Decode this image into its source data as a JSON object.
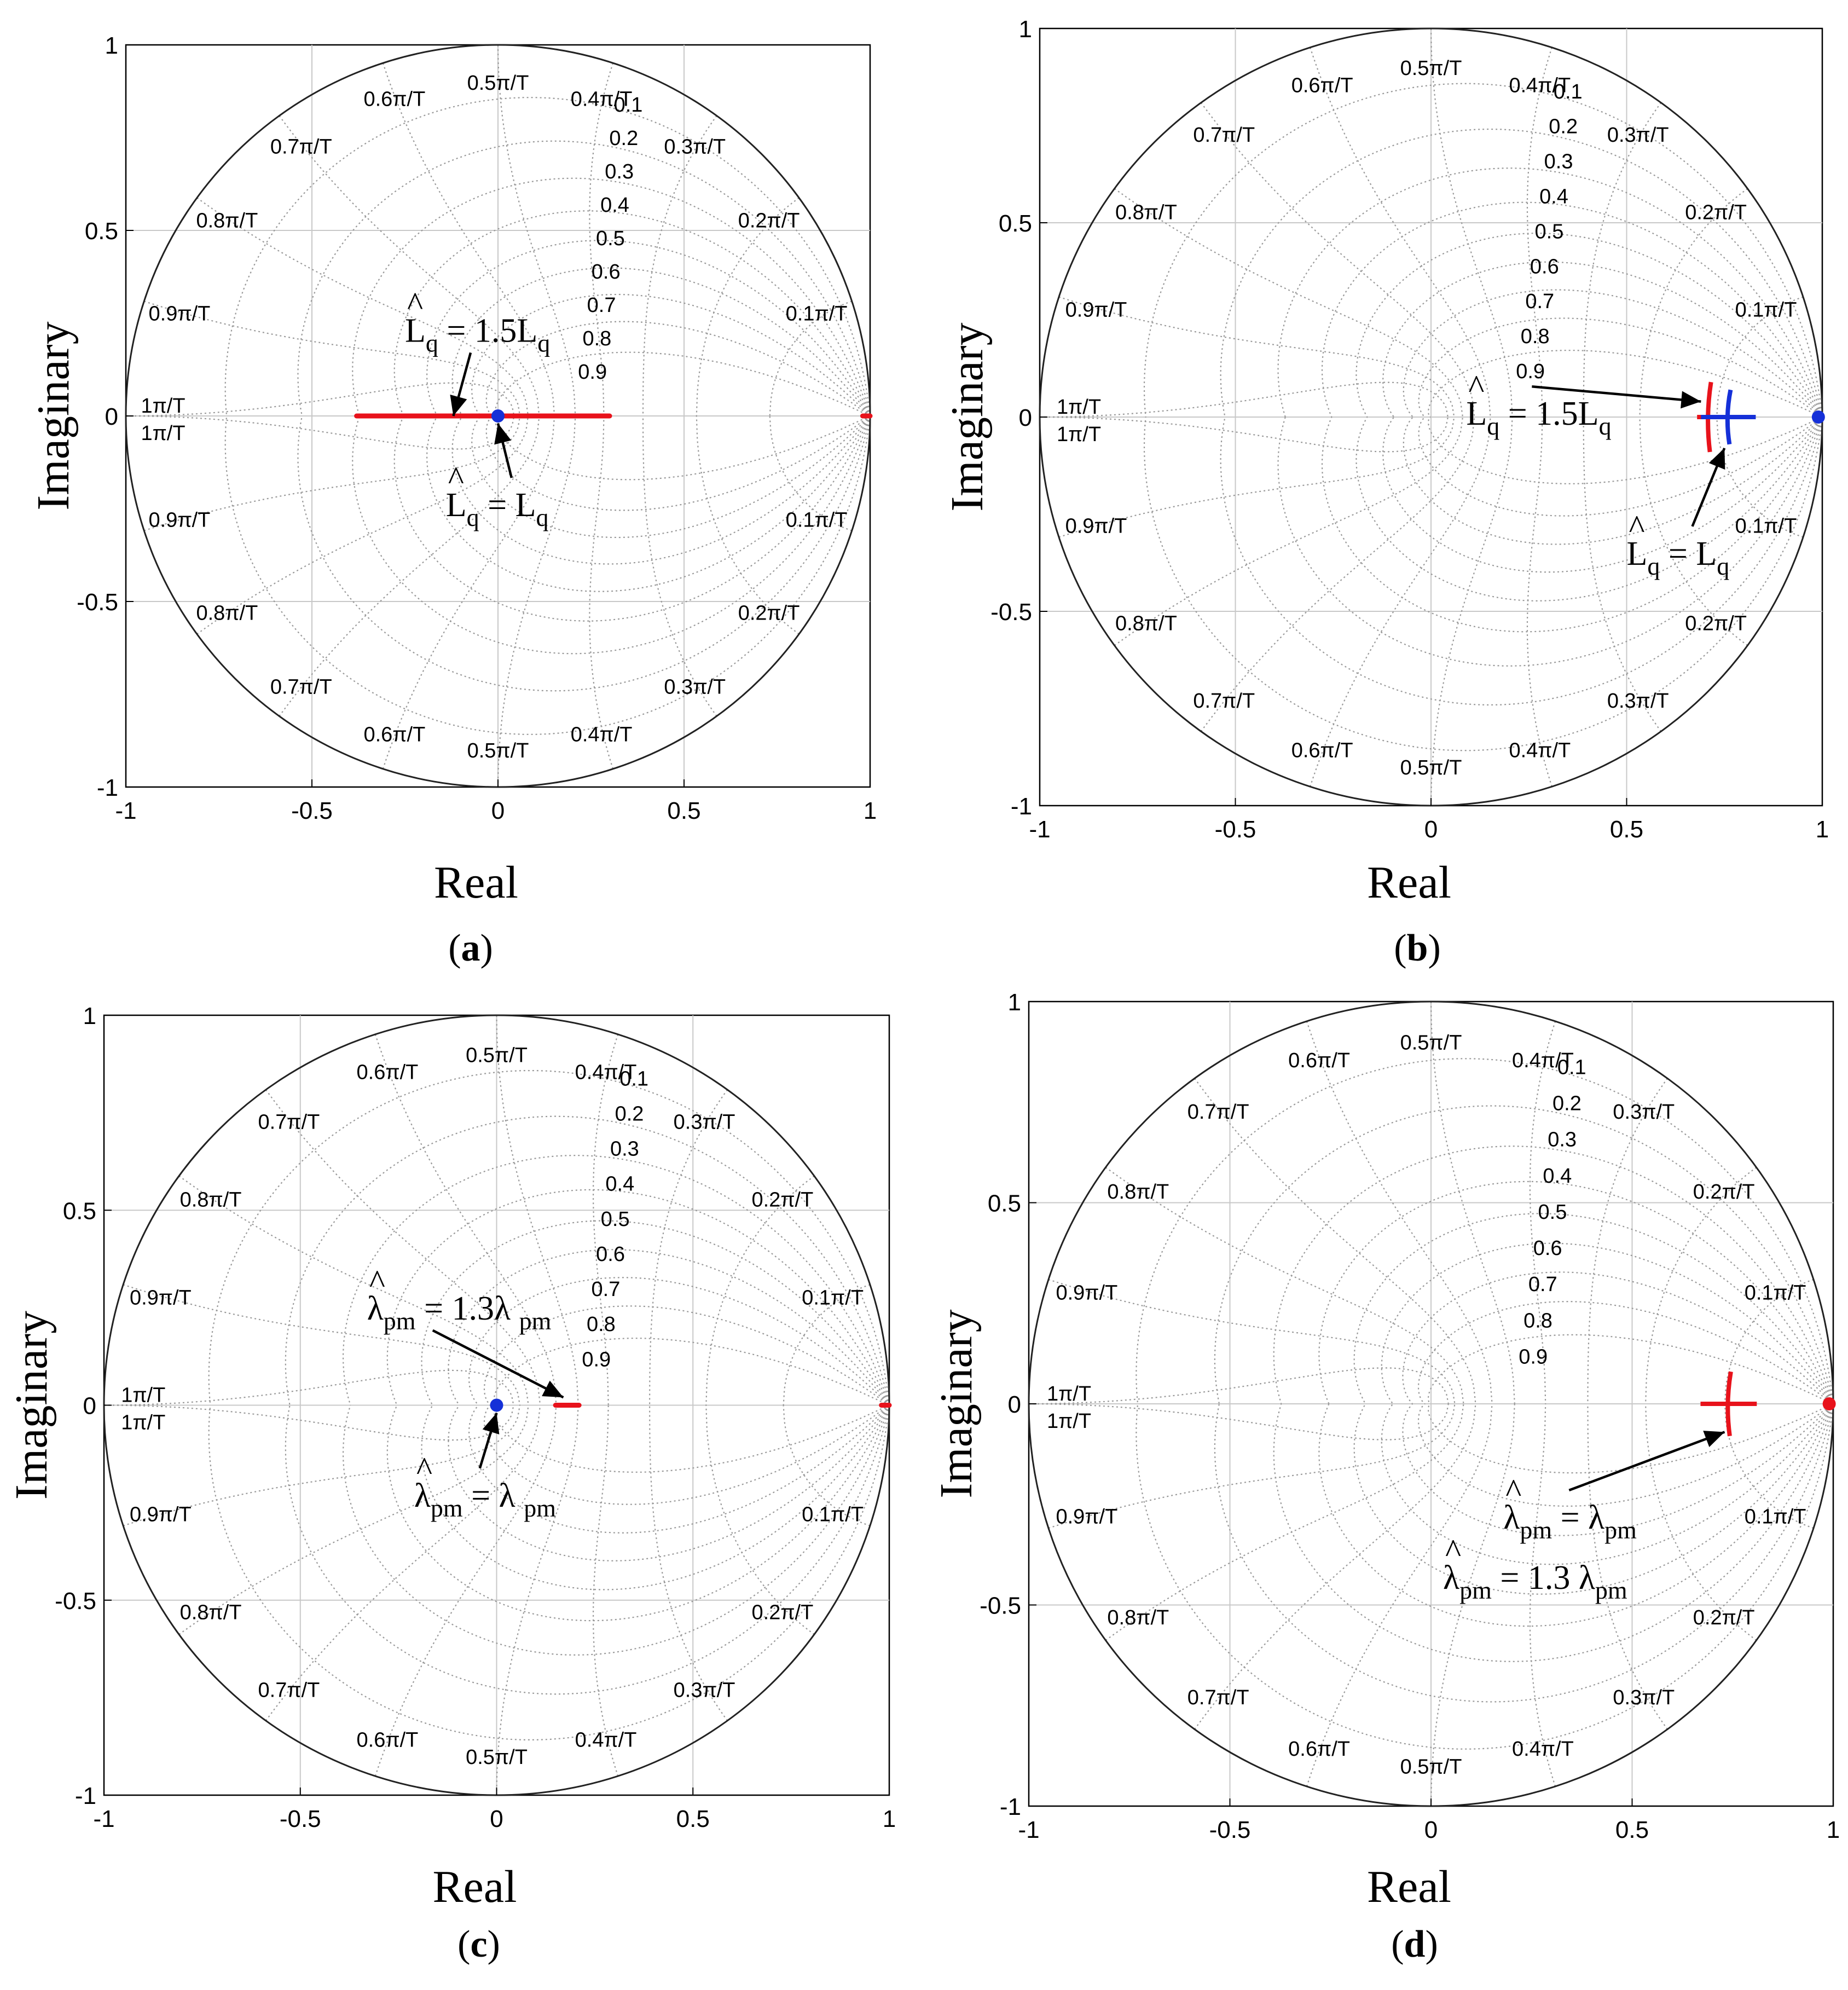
{
  "chart_data": [
    {
      "id": "a",
      "type": "pole-zero map",
      "panel_label": "a",
      "xlabel": "Real",
      "ylabel": "Imaginary",
      "xlim": [
        -1,
        1
      ],
      "ylim": [
        -1,
        1
      ],
      "xticks": [
        "-1",
        "-0.5",
        "0",
        "0.5",
        "1"
      ],
      "yticks": [
        "-1",
        "-0.5",
        "0",
        "0.5",
        "1"
      ],
      "grid": "zgrid (damping 0.1-0.9, natural frequency 0.1π/T-1π/T)",
      "series": [
        {
          "name": "root locus L̂q from Lq to 1.5Lq",
          "color": "#e8121b",
          "kind": "segment",
          "x": [
            -0.38,
            0.3
          ],
          "y": [
            0,
            0
          ]
        },
        {
          "name": "root locus near unit circle",
          "color": "#e8121b",
          "kind": "segment",
          "x": [
            0.98,
            1.0
          ],
          "y": [
            0,
            0
          ]
        },
        {
          "name": "pole at L̂q = Lq",
          "color": "#1530d8",
          "kind": "point",
          "x": [
            0.0
          ],
          "y": [
            0.0
          ]
        }
      ],
      "annotations": [
        {
          "label": "L̂q = 1.5Lq",
          "main": "L",
          "sub": "q",
          "op": " = 1.5L",
          "sub2": "q",
          "x": -0.25,
          "y": 0.2,
          "hat": true,
          "target": [
            -0.12,
            0.0
          ]
        },
        {
          "label": "L̂q = Lq",
          "main": "L",
          "sub": "q",
          "op": " = L",
          "sub2": "q",
          "x": -0.14,
          "y": -0.27,
          "hat": true,
          "target": [
            0.0,
            -0.02
          ]
        }
      ]
    },
    {
      "id": "b",
      "type": "pole-zero map",
      "panel_label": "b",
      "xlabel": "Real",
      "ylabel": "Imaginary",
      "xlim": [
        -1,
        1
      ],
      "ylim": [
        -1,
        1
      ],
      "xticks": [
        "-1",
        "-0.5",
        "0",
        "0.5",
        "1"
      ],
      "yticks": [
        "-1",
        "-0.5",
        "0",
        "0.5",
        "1"
      ],
      "grid": "zgrid",
      "series": [
        {
          "name": "pole cluster L̂q = 1.5Lq",
          "color": "#e8121b",
          "kind": "cross",
          "x": [
            0.71
          ],
          "y": [
            0.0
          ],
          "spread": [
            0.03,
            0.09
          ]
        },
        {
          "name": "pole cluster L̂q = Lq",
          "color": "#1530d8",
          "kind": "cross",
          "x": [
            0.76
          ],
          "y": [
            0.0
          ],
          "spread": [
            0.07,
            0.07
          ]
        },
        {
          "name": "poles near unit circle",
          "color": "#1530d8",
          "kind": "point",
          "x": [
            0.99
          ],
          "y": [
            0.0
          ]
        }
      ],
      "annotations": [
        {
          "label": "L̂q = 1.5Lq",
          "main": "L",
          "sub": "q",
          "op": " = 1.5L",
          "sub2": "q",
          "x": 0.09,
          "y": -0.02,
          "hat": true,
          "target": [
            0.69,
            0.04
          ]
        },
        {
          "label": "L̂q = Lq",
          "main": "L",
          "sub": "q",
          "op": " = L",
          "sub2": "q",
          "x": 0.5,
          "y": -0.38,
          "hat": true,
          "target": [
            0.75,
            -0.08
          ]
        }
      ]
    },
    {
      "id": "c",
      "type": "pole-zero map",
      "panel_label": "c",
      "xlabel": "Real",
      "ylabel": "Imaginary",
      "xlim": [
        -1,
        1
      ],
      "ylim": [
        -1,
        1
      ],
      "xticks": [
        "-1",
        "-0.5",
        "0",
        "0.5",
        "1"
      ],
      "yticks": [
        "-1",
        "-0.5",
        "0",
        "0.5",
        "1"
      ],
      "grid": "zgrid",
      "series": [
        {
          "name": "root locus λ̂pm = 1.3λpm",
          "color": "#e8121b",
          "kind": "segment",
          "x": [
            0.15,
            0.21
          ],
          "y": [
            0,
            0
          ]
        },
        {
          "name": "root locus near unit circle",
          "color": "#e8121b",
          "kind": "segment",
          "x": [
            0.98,
            1.0
          ],
          "y": [
            0,
            0
          ]
        },
        {
          "name": "pole at λ̂pm = λpm",
          "color": "#1530d8",
          "kind": "point",
          "x": [
            0.0
          ],
          "y": [
            0.0
          ]
        }
      ],
      "annotations": [
        {
          "label": "λ̂pm = 1.3λ pm",
          "main": "λ",
          "sub": "pm",
          "op": " = 1.3λ ",
          "sub2": "pm",
          "x": -0.33,
          "y": 0.22,
          "hat": true,
          "target": [
            0.17,
            0.02
          ]
        },
        {
          "label": "λ̂pm = λ pm",
          "main": "λ",
          "sub": "pm",
          "op": " = λ ",
          "sub2": "pm",
          "x": -0.21,
          "y": -0.26,
          "hat": true,
          "target": [
            0.0,
            -0.02
          ]
        }
      ]
    },
    {
      "id": "d",
      "type": "pole-zero map",
      "panel_label": "d",
      "xlabel": "Real",
      "ylabel": "Imaginary",
      "xlim": [
        -1,
        1
      ],
      "ylim": [
        -1,
        1
      ],
      "xticks": [
        "-1",
        "-0.5",
        "0",
        "0.5",
        "1"
      ],
      "yticks": [
        "-1",
        "-0.5",
        "0",
        "0.5",
        "1"
      ],
      "grid": "zgrid",
      "series": [
        {
          "name": "pole cluster (λ̂pm = λpm and λ̂pm = 1.3 λpm)",
          "color": "#e8121b",
          "kind": "cross",
          "x": [
            0.74
          ],
          "y": [
            0.0
          ],
          "spread": [
            0.07,
            0.08
          ]
        },
        {
          "name": "poles near unit circle",
          "color": "#e8121b",
          "kind": "point",
          "x": [
            0.99
          ],
          "y": [
            0.0
          ]
        }
      ],
      "annotations": [
        {
          "label": "λ̂pm = λpm",
          "main": "λ",
          "sub": "pm",
          "op": " = λ",
          "sub2": "pm",
          "x": 0.18,
          "y": -0.31,
          "hat": true,
          "target": [
            0.73,
            -0.07
          ]
        },
        {
          "label": "λ̂pm = 1.3 λpm",
          "main": "λ",
          "sub": "pm",
          "op": " = 1.3 λ",
          "sub2": "pm",
          "x": 0.03,
          "y": -0.46,
          "hat": true,
          "target": null
        }
      ]
    }
  ],
  "grid_labels": {
    "freq": [
      "0.1π/T",
      "0.2π/T",
      "0.3π/T",
      "0.4π/T",
      "0.5π/T",
      "0.6π/T",
      "0.7π/T",
      "0.8π/T",
      "0.9π/T",
      "1π/T"
    ],
    "damping": [
      "0.1",
      "0.2",
      "0.3",
      "0.4",
      "0.5",
      "0.6",
      "0.7",
      "0.8",
      "0.9"
    ]
  }
}
